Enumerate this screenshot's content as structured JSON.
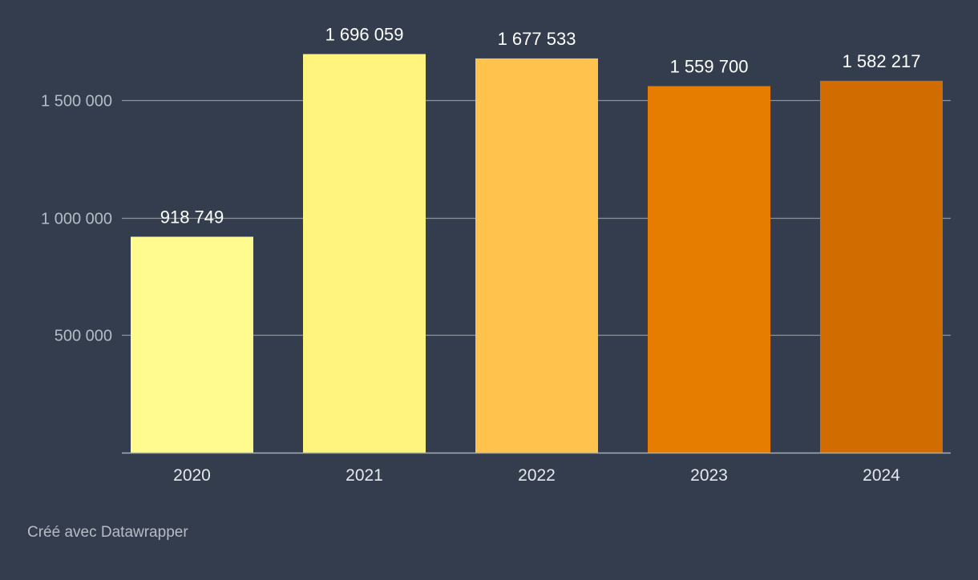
{
  "chart_data": {
    "type": "bar",
    "categories": [
      "2020",
      "2021",
      "2022",
      "2023",
      "2024"
    ],
    "values": [
      918749,
      1696059,
      1677533,
      1559700,
      1582217
    ],
    "value_labels": [
      "918 749",
      "1 696 059",
      "1 677 533",
      "1 559 700",
      "1 582 217"
    ],
    "bar_colors": [
      "#fffb8f",
      "#fff47d",
      "#ffc34d",
      "#e67d00",
      "#d06c00"
    ],
    "yticks": [
      500000,
      1000000,
      1500000
    ],
    "ytick_labels": [
      "500 000",
      "1 000 000",
      "1 500 000"
    ],
    "ylim": [
      0,
      1700000
    ],
    "grid": true,
    "title": "",
    "xlabel": "",
    "ylabel": ""
  },
  "colors": {
    "background": "#333d4e",
    "gridline": "#8d939c",
    "axis": "#a9aeb6"
  },
  "footer": {
    "credit": "Créé avec Datawrapper"
  }
}
